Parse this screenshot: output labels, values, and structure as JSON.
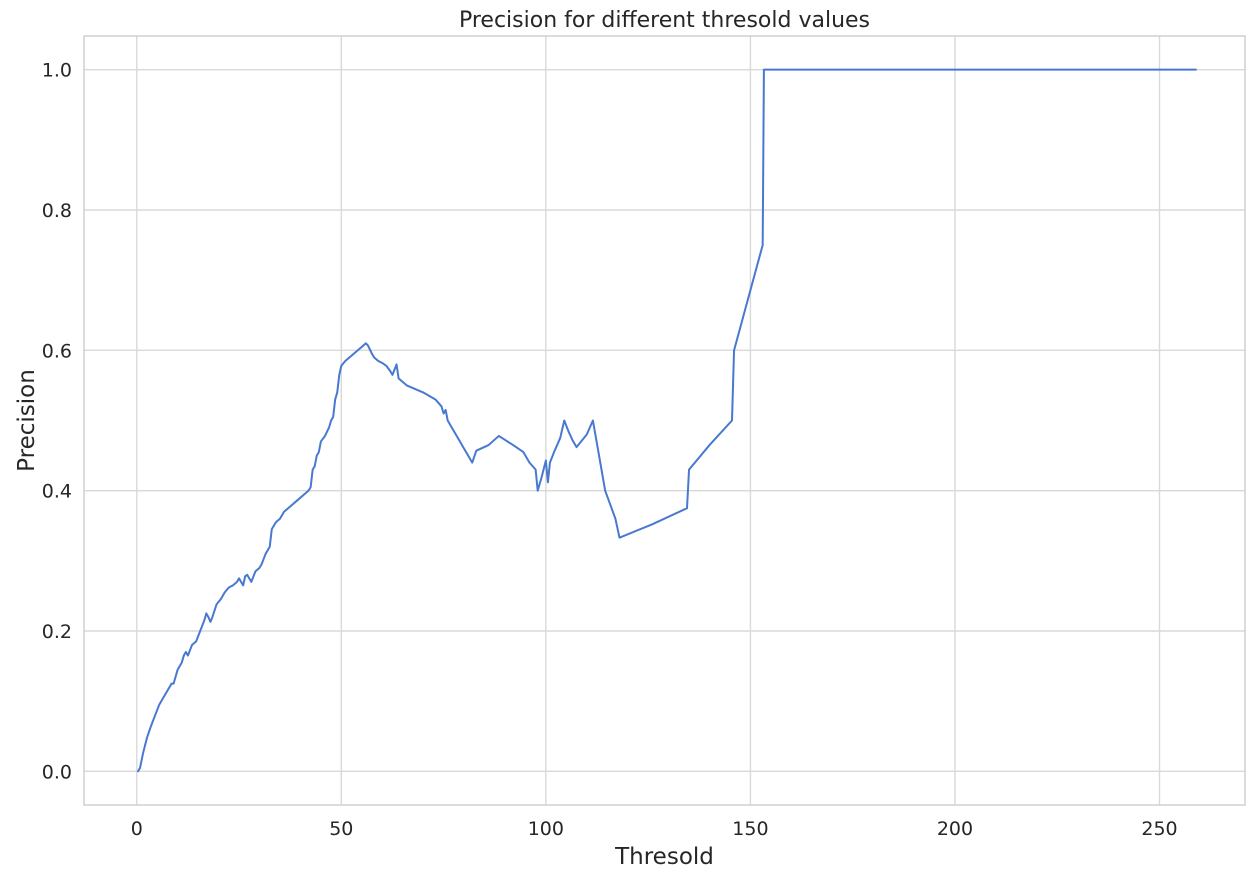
{
  "chart_data": {
    "type": "line",
    "title": "Precision for different thresold values",
    "xlabel": "Thresold",
    "ylabel": "Precision",
    "xlim": [
      -12.9,
      270.9
    ],
    "ylim": [
      -0.048,
      1.048
    ],
    "xticks": [
      0,
      50,
      100,
      150,
      200,
      250
    ],
    "xtick_labels": [
      "0",
      "50",
      "100",
      "150",
      "200",
      "250"
    ],
    "yticks": [
      0.0,
      0.2,
      0.4,
      0.6,
      0.8,
      1.0
    ],
    "ytick_labels": [
      "0.0",
      "0.2",
      "0.4",
      "0.6",
      "0.8",
      "1.0"
    ],
    "grid": true,
    "line_color": "#4878d0",
    "series": [
      {
        "x": [
          0.3,
          0.8,
          1.5,
          2.5,
          3.5,
          4.5,
          5.5,
          6.5,
          7.5,
          8.5,
          9.0,
          10.0,
          11.0,
          11.5,
          12.0,
          12.5,
          13.5,
          14.5,
          15.5,
          16.5,
          17.0,
          17.5,
          18.0,
          18.5,
          19.5,
          20.5,
          21.5,
          22.5,
          23.5,
          24.5,
          25.0,
          25.5,
          26.0,
          26.5,
          27.0,
          28.0,
          29.0,
          30.0,
          30.5,
          31.5,
          32.5,
          33.0,
          34.0,
          35.0,
          36.0,
          37.0,
          38.0,
          39.0,
          40.0,
          41.0,
          42.0,
          42.5,
          43.0,
          43.5,
          44.0,
          44.5,
          45.0,
          46.0,
          47.0,
          47.5,
          48.0,
          48.5,
          49.0,
          49.5,
          50.0,
          51.0,
          52.0,
          53.0,
          54.0,
          55.0,
          56.0,
          56.5,
          57.5,
          58.0,
          59.0,
          60.0,
          61.0,
          62.0,
          62.5,
          63.5,
          64.0,
          66.0,
          68.0,
          70.0,
          73.0,
          74.5,
          75.0,
          75.5,
          76.0,
          77.0,
          78.5,
          80.0,
          82.0,
          83.0,
          86.0,
          88.5,
          92.0,
          94.5,
          96.0,
          97.5,
          98.0,
          99.0,
          100.0,
          100.5,
          101.0,
          102.0,
          103.5,
          104.5,
          105.5,
          106.5,
          107.5,
          110.0,
          111.5,
          113.0,
          114.5,
          117.0,
          118.0,
          126.0,
          134.5,
          135.0,
          140.0,
          145.5,
          146.0,
          153.0,
          153.3,
          160.0,
          200.0,
          250.0,
          258.9
        ],
        "y": [
          0.0,
          0.005,
          0.025,
          0.048,
          0.065,
          0.08,
          0.095,
          0.105,
          0.115,
          0.125,
          0.125,
          0.145,
          0.155,
          0.165,
          0.17,
          0.165,
          0.18,
          0.185,
          0.2,
          0.215,
          0.225,
          0.22,
          0.213,
          0.22,
          0.238,
          0.245,
          0.255,
          0.262,
          0.265,
          0.27,
          0.275,
          0.27,
          0.265,
          0.278,
          0.28,
          0.27,
          0.285,
          0.29,
          0.295,
          0.31,
          0.32,
          0.345,
          0.355,
          0.36,
          0.37,
          0.375,
          0.38,
          0.385,
          0.39,
          0.395,
          0.4,
          0.405,
          0.43,
          0.435,
          0.45,
          0.455,
          0.47,
          0.478,
          0.49,
          0.5,
          0.505,
          0.53,
          0.54,
          0.565,
          0.578,
          0.585,
          0.59,
          0.595,
          0.6,
          0.605,
          0.61,
          0.607,
          0.595,
          0.59,
          0.585,
          0.582,
          0.578,
          0.57,
          0.565,
          0.58,
          0.56,
          0.55,
          0.545,
          0.54,
          0.53,
          0.52,
          0.51,
          0.515,
          0.5,
          0.49,
          0.475,
          0.46,
          0.44,
          0.457,
          0.465,
          0.478,
          0.465,
          0.455,
          0.44,
          0.43,
          0.4,
          0.42,
          0.443,
          0.412,
          0.44,
          0.455,
          0.475,
          0.5,
          0.485,
          0.472,
          0.462,
          0.48,
          0.5,
          0.45,
          0.4,
          0.36,
          0.333,
          0.352,
          0.375,
          0.43,
          0.465,
          0.5,
          0.6,
          0.75,
          1.0,
          1.0,
          1.0,
          1.0,
          1.0
        ]
      }
    ]
  }
}
